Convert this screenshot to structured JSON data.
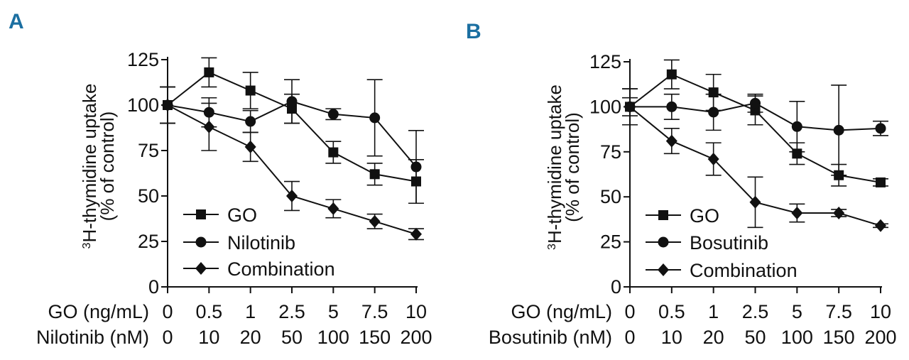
{
  "chart_data": [
    {
      "type": "line",
      "panel": "A",
      "ylabel_line1": "H-thymidine uptake",
      "ylabel_sup": "3",
      "ylabel_line2": "(% of control)",
      "ylim": [
        0,
        125
      ],
      "yticks": [
        0,
        25,
        50,
        75,
        100,
        125
      ],
      "x_row1_label": "GO (ng/mL)",
      "x_row2_label": "Nilotinib (nM)",
      "x_row1": [
        "0",
        "0.5",
        "1",
        "2.5",
        "5",
        "7.5",
        "10"
      ],
      "x_row2": [
        "0",
        "10",
        "20",
        "50",
        "100",
        "150",
        "200"
      ],
      "series": [
        {
          "name": "GO",
          "marker": "square",
          "values": [
            100,
            118,
            108,
            98,
            74,
            62,
            58
          ],
          "errors": [
            10,
            8,
            10,
            8,
            6,
            6,
            12
          ]
        },
        {
          "name": "Nilotinib",
          "marker": "circle",
          "values": [
            100,
            96,
            91,
            102,
            95,
            93,
            66
          ],
          "errors": [
            10,
            8,
            6,
            12,
            3,
            21,
            20
          ]
        },
        {
          "name": "Combination",
          "marker": "diamond",
          "values": [
            100,
            88,
            77,
            50,
            43,
            36,
            29
          ],
          "errors": [
            10,
            13,
            8,
            8,
            5,
            4,
            3
          ]
        }
      ]
    },
    {
      "type": "line",
      "panel": "B",
      "ylabel_line1": "H-thymidine uptake",
      "ylabel_sup": "3",
      "ylabel_line2": "(% of control)",
      "ylim": [
        0,
        125
      ],
      "yticks": [
        0,
        25,
        50,
        75,
        100,
        125
      ],
      "x_row1_label": "GO (ng/mL)",
      "x_row2_label": "Bosutinib (nM)",
      "x_row1": [
        "0",
        "0.5",
        "1",
        "2.5",
        "5",
        "7.5",
        "10"
      ],
      "x_row2": [
        "0",
        "10",
        "20",
        "50",
        "100",
        "150",
        "200"
      ],
      "series": [
        {
          "name": "GO",
          "marker": "square",
          "values": [
            100,
            118,
            108,
            98,
            74,
            62,
            58
          ],
          "errors": [
            10,
            8,
            10,
            8,
            6,
            6,
            2
          ]
        },
        {
          "name": "Bosutinib",
          "marker": "circle",
          "values": [
            100,
            100,
            97,
            102,
            89,
            87,
            88
          ],
          "errors": [
            5,
            7,
            10,
            5,
            14,
            25,
            4
          ]
        },
        {
          "name": "Combination",
          "marker": "diamond",
          "values": [
            100,
            81,
            71,
            47,
            41,
            41,
            34
          ],
          "errors": [
            10,
            7,
            9,
            14,
            5,
            2,
            1
          ]
        }
      ]
    }
  ]
}
